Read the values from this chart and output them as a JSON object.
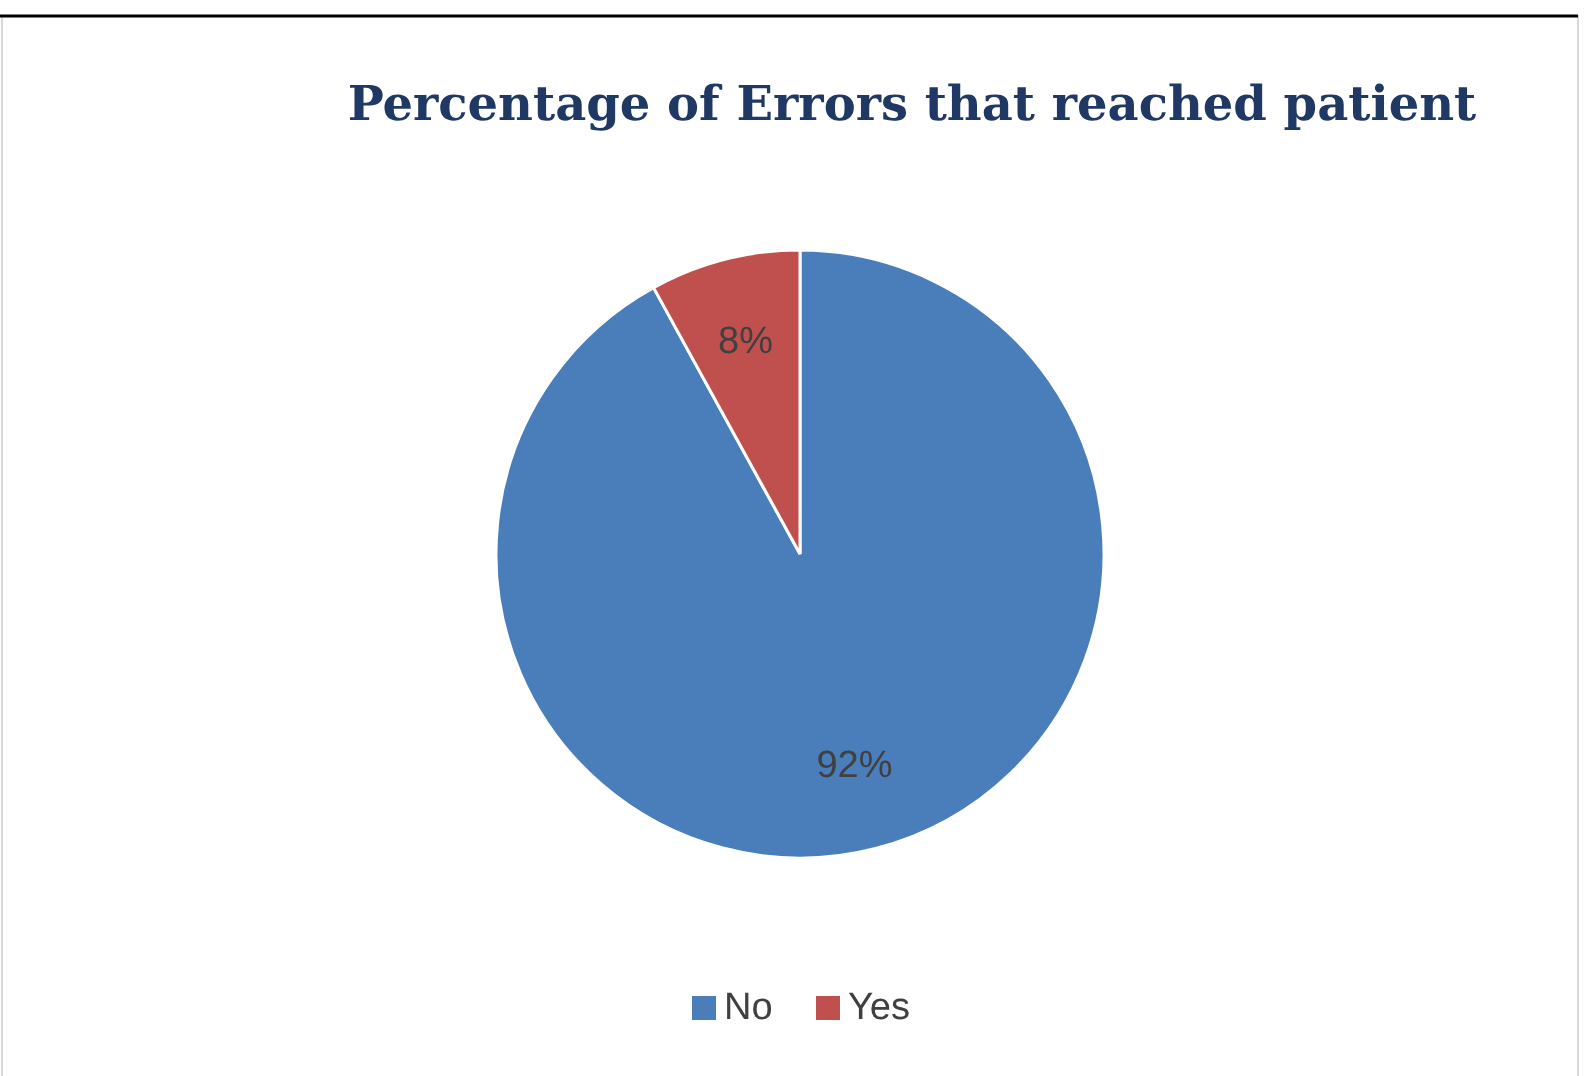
{
  "chart_data": {
    "type": "pie",
    "title": "Percentage of Errors that reached patient",
    "categories": [
      "No",
      "Yes"
    ],
    "values": [
      92,
      8
    ],
    "colors": [
      "#4a7ebb",
      "#c0504d"
    ],
    "value_labels": [
      "92%",
      "8%"
    ],
    "legend": "bottom"
  }
}
